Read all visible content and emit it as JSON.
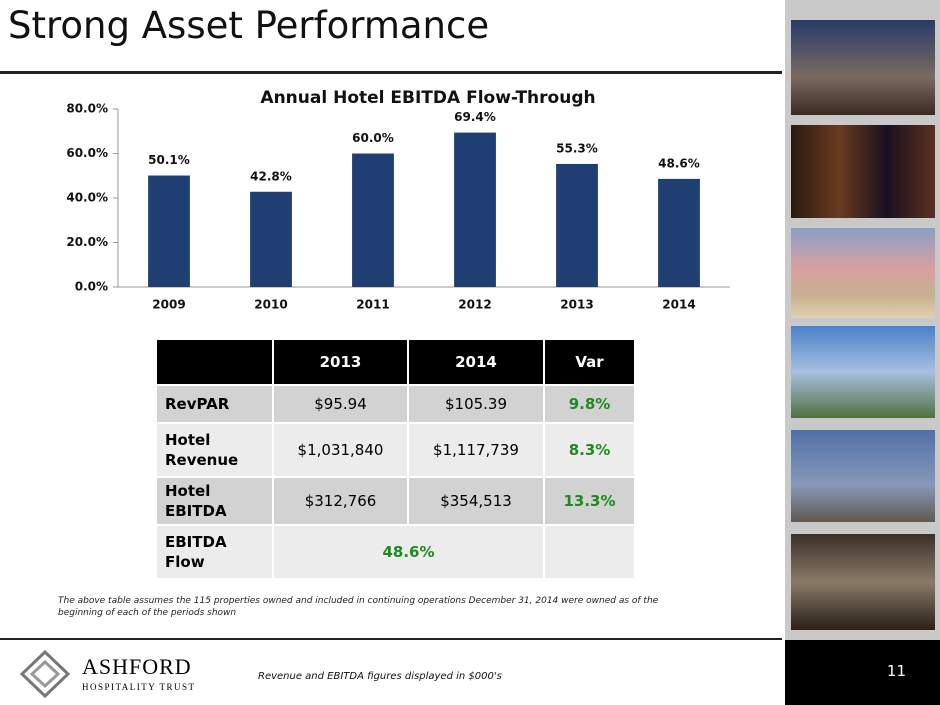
{
  "title": "Strong Asset Performance",
  "chart_data": {
    "type": "bar",
    "title": "Annual Hotel EBITDA Flow-Through",
    "categories": [
      "2009",
      "2010",
      "2011",
      "2012",
      "2013",
      "2014"
    ],
    "values": [
      50.1,
      42.8,
      60.0,
      69.4,
      55.3,
      48.6
    ],
    "value_labels": [
      "50.1%",
      "42.8%",
      "60.0%",
      "69.4%",
      "55.3%",
      "48.6%"
    ],
    "color": "#1f3f73",
    "ylim": [
      0,
      80
    ],
    "yticks": [
      {
        "value": 0,
        "label": "0.0%"
      },
      {
        "value": 20,
        "label": "20.0%"
      },
      {
        "value": 40,
        "label": "40.0%"
      },
      {
        "value": 60,
        "label": "60.0%"
      },
      {
        "value": 80,
        "label": "80.0%"
      }
    ],
    "grid": false
  },
  "table": {
    "header": [
      "2013",
      "2014",
      "Var"
    ],
    "rows": [
      [
        "RevPAR",
        "$95.94",
        "$105.39",
        "9.8%"
      ],
      [
        "Hotel Revenue",
        "$1,031,840",
        "$1,117,739",
        "8.3%"
      ],
      [
        "Hotel EBITDA",
        "$312,766",
        "$354,513",
        "13.3%"
      ],
      [
        "EBITDA Flow",
        "48.6%"
      ]
    ]
  },
  "footnote": "The above table assumes the 115 properties owned and included in continuing operations December 31, 2014 were owned as of the beginning of each of the periods shown",
  "logo": {
    "name": "ASHFORD",
    "tagline": "HOSPITALITY TRUST"
  },
  "units_note": "Revenue and EBITDA figures displayed in $000's",
  "page_number": "11"
}
